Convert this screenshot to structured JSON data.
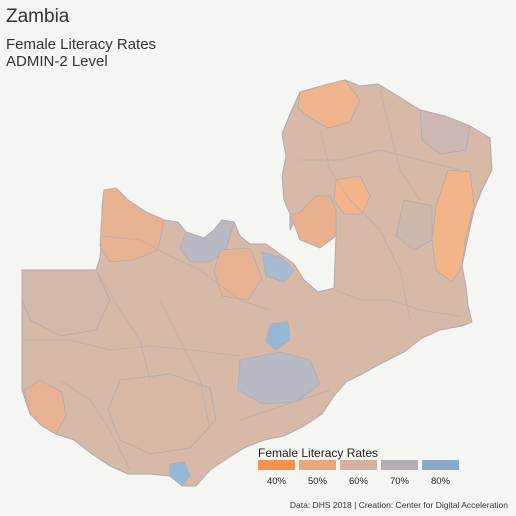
{
  "title": "Zambia",
  "subtitle_lines": [
    "Female Literacy Rates",
    "ADMIN-2 Level"
  ],
  "legend": {
    "title": "Female Literacy Rates",
    "items": [
      {
        "label": "40%",
        "color": "#f5924d"
      },
      {
        "label": "50%",
        "color": "#e8a77c"
      },
      {
        "label": "60%",
        "color": "#d4b0a0"
      },
      {
        "label": "70%",
        "color": "#b2adb3"
      },
      {
        "label": "80%",
        "color": "#8aaacc"
      }
    ]
  },
  "caption": "Data: DHS 2018 | Creation: Center for Digital Acceleration",
  "map_colors": {
    "base": "#d6b9a6",
    "orange_light": "#e6b291",
    "orange": "#f3b48a",
    "blue_grey": "#b7b9c4",
    "blue": "#97b7d6",
    "border": "#b0aab0"
  }
}
